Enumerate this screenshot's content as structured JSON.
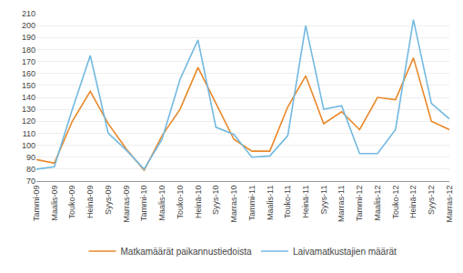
{
  "chart_data": {
    "type": "line",
    "categories": [
      "Tammi-09",
      "Maalis-09",
      "Touko-09",
      "Heinä-09",
      "Syys-09",
      "Marras-09",
      "Tammi-10",
      "Maalis-10",
      "Touko-10",
      "Heinä-10",
      "Syys-10",
      "Marras-10",
      "Tammi-11",
      "Maalis-11",
      "Touko-11",
      "Heinä-11",
      "Syys-11",
      "Marras-11",
      "Tammi-12",
      "Maalis-12",
      "Touko-12",
      "Heinä-12",
      "Syys-12",
      "Marras-12"
    ],
    "series": [
      {
        "name": "Matkamäärät paikannustiedoista",
        "color": "#E8882A",
        "values": [
          88,
          85,
          120,
          145,
          118,
          97,
          79,
          108,
          130,
          165,
          135,
          105,
          95,
          95,
          132,
          158,
          118,
          128,
          113,
          140,
          138,
          173,
          120,
          113
        ]
      },
      {
        "name": "Laivamatkustajien määrät",
        "color": "#73B9E0",
        "values": [
          80,
          82,
          130,
          175,
          110,
          96,
          80,
          105,
          155,
          188,
          115,
          109,
          90,
          91,
          108,
          200,
          130,
          133,
          93,
          93,
          113,
          205,
          135,
          122
        ]
      }
    ],
    "ylim": [
      70,
      210
    ],
    "yticks": [
      70,
      80,
      90,
      100,
      110,
      120,
      130,
      140,
      150,
      160,
      170,
      180,
      190,
      200,
      210
    ],
    "grid": true,
    "legend": "bottom"
  }
}
